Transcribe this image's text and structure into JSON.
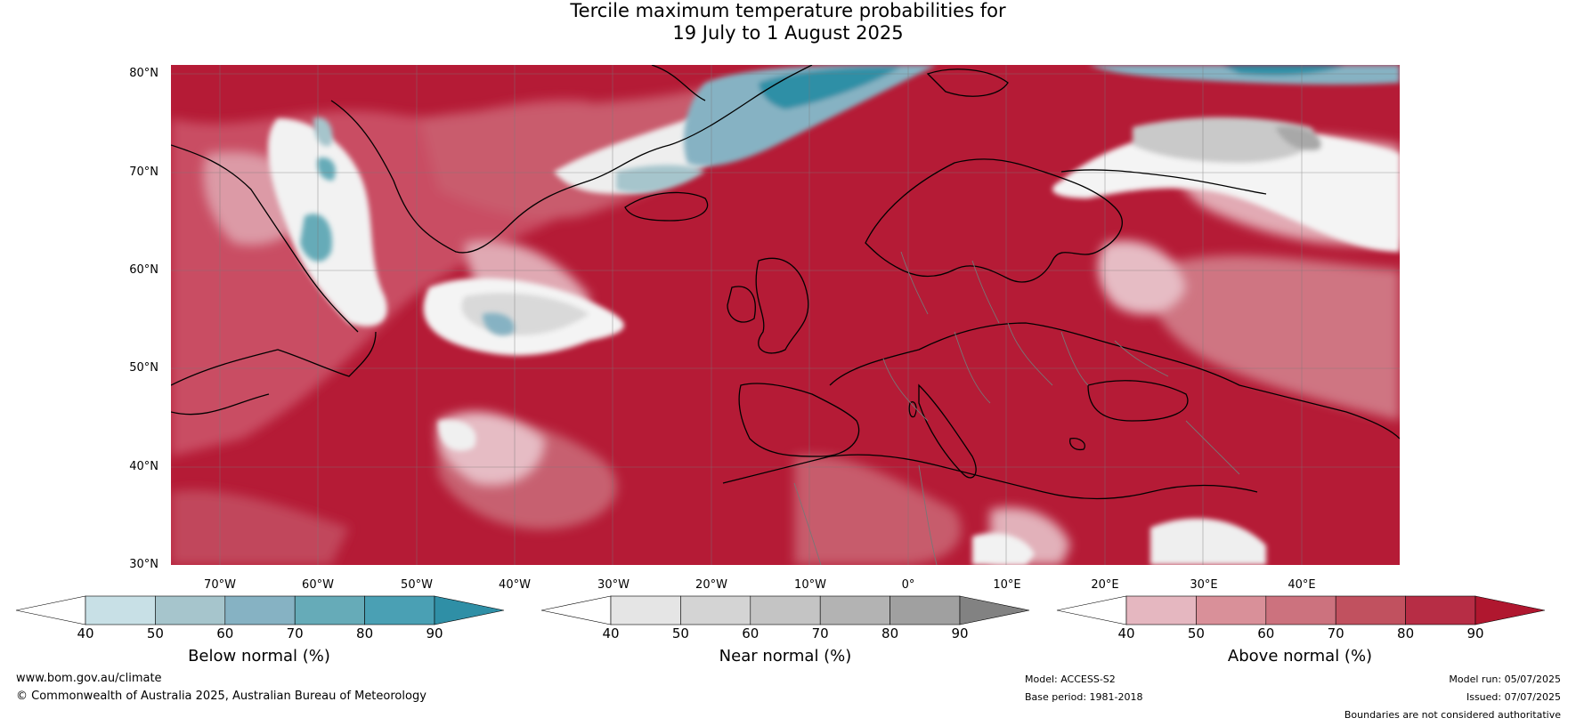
{
  "title": {
    "line1": "Tercile maximum temperature probabilities for",
    "line2": "19 July to 1 August 2025"
  },
  "map": {
    "lat_labels": [
      "80°N",
      "70°N",
      "60°N",
      "50°N",
      "40°N",
      "30°N"
    ],
    "lon_labels": [
      "70°W",
      "60°W",
      "50°W",
      "40°W",
      "30°W",
      "20°W",
      "10°W",
      "0°",
      "10°E",
      "20°E",
      "30°E",
      "40°E"
    ],
    "regions": [
      "North Atlantic",
      "Greenland",
      "Europe",
      "North Africa",
      "Eastern North America"
    ]
  },
  "colorbars": [
    {
      "title": "Below normal (%)",
      "ticks": [
        "40",
        "50",
        "60",
        "70",
        "80",
        "90"
      ],
      "colors": [
        "#ffffff",
        "#c8e0e6",
        "#a6c5cc",
        "#86b2c3",
        "#66abb8",
        "#4aa0b4",
        "#2f8fa6"
      ]
    },
    {
      "title": "Near normal (%)",
      "ticks": [
        "40",
        "50",
        "60",
        "70",
        "80",
        "90"
      ],
      "colors": [
        "#ffffff",
        "#e5e5e5",
        "#d4d4d4",
        "#c4c4c4",
        "#b3b3b3",
        "#a0a0a0",
        "#828282"
      ]
    },
    {
      "title": "Above normal (%)",
      "ticks": [
        "40",
        "50",
        "60",
        "70",
        "80",
        "90"
      ],
      "colors": [
        "#ffffff",
        "#e5b7c0",
        "#d99099",
        "#cc727e",
        "#c1515f",
        "#b72d45",
        "#b0172f"
      ]
    }
  ],
  "footer": {
    "website": "www.bom.gov.au/climate",
    "copyright": "© Commonwealth of Australia 2025, Australian Bureau of Meteorology",
    "model": "Model: ACCESS-S2",
    "base_period": "Base period: 1981-2018",
    "model_run": "Model run: 05/07/2025",
    "issued": "Issued: 07/07/2025",
    "disclaimer": "Boundaries are not considered authoritative"
  }
}
